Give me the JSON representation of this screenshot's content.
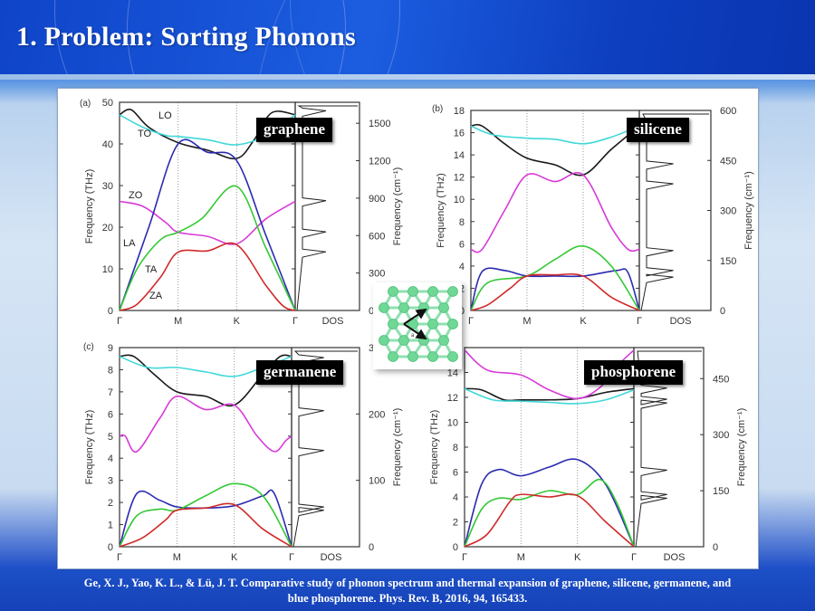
{
  "slide": {
    "title": "1. Problem: Sorting Phonons",
    "citation_line1": "Ge, X. J., Yao, K. L., & Lü, J. T. Comparative  study of phonon  spectrum  and thermal  expansion of graphene, silicene, germanene, and",
    "citation_line2": "blue phosphorene.  Phys. Rev. B, 2016, 94, 165433."
  },
  "colors": {
    "LO": "#1a1a1a",
    "TO": "#40d8d8",
    "ZO": "#d83ad8",
    "LA": "#2b2bb0",
    "TA": "#34c834",
    "ZA": "#d02a2a"
  },
  "inset": {
    "label": "a",
    "description": "honeycomb lattice with lattice vectors"
  },
  "chart_data": [
    {
      "type": "line",
      "panel": "(a)",
      "material": "graphene",
      "x_ticks": [
        "Γ",
        "M",
        "K",
        "Γ"
      ],
      "dos_label": "DOS",
      "ylabel": "Frequency (THz)",
      "ylabel_right": "Frequency (cm⁻¹)",
      "ylim": [
        0,
        50
      ],
      "y_ticks": [
        0,
        10,
        20,
        30,
        40,
        50
      ],
      "ylim_right": [
        0,
        1668
      ],
      "y_ticks_right": [
        0,
        300,
        600,
        900,
        1200,
        1500
      ],
      "branch_labels": [
        "LO",
        "TO",
        "ZO",
        "LA",
        "TA",
        "ZA"
      ],
      "series": [
        {
          "name": "LO",
          "values": [
            [
              0,
              47
            ],
            [
              0.2,
              48.2
            ],
            [
              0.5,
              44
            ],
            [
              1,
              40.3
            ],
            [
              1.5,
              38.5
            ],
            [
              2,
              36.5
            ],
            [
              2.3,
              41
            ],
            [
              2.6,
              47.5
            ],
            [
              3,
              47
            ]
          ]
        },
        {
          "name": "TO",
          "values": [
            [
              0,
              47
            ],
            [
              0.4,
              44
            ],
            [
              0.8,
              42
            ],
            [
              1,
              41.8
            ],
            [
              1.5,
              41
            ],
            [
              2,
              39.8
            ],
            [
              2.5,
              42
            ],
            [
              3,
              47
            ]
          ]
        },
        {
          "name": "ZO",
          "values": [
            [
              0,
              26.2
            ],
            [
              0.4,
              25
            ],
            [
              0.8,
              21
            ],
            [
              1,
              18.8
            ],
            [
              1.5,
              17.8
            ],
            [
              2,
              16
            ],
            [
              2.5,
              22
            ],
            [
              3,
              26.2
            ]
          ]
        },
        {
          "name": "LA",
          "values": [
            [
              0,
              0
            ],
            [
              0.5,
              20
            ],
            [
              1,
              40
            ],
            [
              1.5,
              38
            ],
            [
              2,
              36
            ],
            [
              2.5,
              18
            ],
            [
              3,
              0
            ]
          ]
        },
        {
          "name": "TA",
          "values": [
            [
              0,
              0
            ],
            [
              0.3,
              10
            ],
            [
              0.7,
              17
            ],
            [
              1,
              18.8
            ],
            [
              1.4,
              22
            ],
            [
              2,
              29.8
            ],
            [
              2.5,
              15
            ],
            [
              3,
              0
            ]
          ]
        },
        {
          "name": "ZA",
          "values": [
            [
              0,
              0
            ],
            [
              0.3,
              1.5
            ],
            [
              0.7,
              8
            ],
            [
              1,
              14
            ],
            [
              1.5,
              14.3
            ],
            [
              2,
              15.8
            ],
            [
              2.5,
              6
            ],
            [
              2.8,
              1
            ],
            [
              3,
              0
            ]
          ]
        }
      ],
      "dos_peaks_cm": [
        470,
        630,
        880,
        1600
      ]
    },
    {
      "type": "line",
      "panel": "(b)",
      "material": "silicene",
      "x_ticks": [
        "Γ",
        "M",
        "K",
        "Γ"
      ],
      "dos_label": "DOS",
      "ylabel": "Frequency (THz)",
      "ylabel_right": "Frequency (cm⁻¹)",
      "ylim": [
        0,
        18
      ],
      "y_ticks": [
        0,
        2,
        4,
        6,
        8,
        10,
        12,
        14,
        16,
        18
      ],
      "ylim_right": [
        0,
        600
      ],
      "y_ticks_right": [
        0,
        150,
        300,
        450,
        600
      ],
      "series": [
        {
          "name": "LO",
          "values": [
            [
              0,
              16.6
            ],
            [
              0.2,
              16.6
            ],
            [
              0.6,
              15
            ],
            [
              1,
              13.7
            ],
            [
              1.5,
              13.1
            ],
            [
              2,
              12.2
            ],
            [
              2.5,
              14.5
            ],
            [
              3,
              16.6
            ]
          ]
        },
        {
          "name": "TO",
          "values": [
            [
              0,
              16.6
            ],
            [
              0.4,
              15.8
            ],
            [
              1,
              15.5
            ],
            [
              1.5,
              15.4
            ],
            [
              2,
              15
            ],
            [
              2.5,
              15.6
            ],
            [
              3,
              16.6
            ]
          ]
        },
        {
          "name": "ZO",
          "values": [
            [
              0,
              5.5
            ],
            [
              0.2,
              5.5
            ],
            [
              0.6,
              9
            ],
            [
              1,
              12.2
            ],
            [
              1.5,
              11.6
            ],
            [
              2,
              12.2
            ],
            [
              2.5,
              7.5
            ],
            [
              2.8,
              5.5
            ],
            [
              3,
              5.5
            ]
          ]
        },
        {
          "name": "LA",
          "values": [
            [
              0,
              0
            ],
            [
              0.2,
              3.5
            ],
            [
              0.6,
              3.6
            ],
            [
              1,
              3.1
            ],
            [
              1.5,
              3.1
            ],
            [
              2,
              3.1
            ],
            [
              2.6,
              3.6
            ],
            [
              2.8,
              3.4
            ],
            [
              3,
              0
            ]
          ]
        },
        {
          "name": "TA",
          "values": [
            [
              0,
              0
            ],
            [
              0.3,
              2.5
            ],
            [
              1,
              3.1
            ],
            [
              1.5,
              4.6
            ],
            [
              2,
              5.8
            ],
            [
              2.5,
              4
            ],
            [
              3,
              0
            ]
          ]
        },
        {
          "name": "ZA",
          "values": [
            [
              0,
              0
            ],
            [
              0.3,
              0.5
            ],
            [
              0.7,
              2
            ],
            [
              1,
              3.1
            ],
            [
              1.5,
              3.2
            ],
            [
              2,
              3.1
            ],
            [
              2.5,
              1.2
            ],
            [
              3,
              0
            ]
          ]
        }
      ],
      "dos_peaks_cm": [
        100,
        120,
        180,
        380,
        440,
        560
      ]
    },
    {
      "type": "line",
      "panel": "(c)",
      "material": "germanene",
      "x_ticks": [
        "Γ",
        "M",
        "K",
        "Γ"
      ],
      "dos_label": "DOS",
      "ylabel": "Frequency (THz)",
      "ylabel_right": "Frequency (cm⁻¹)",
      "ylim": [
        0,
        9
      ],
      "y_ticks": [
        0,
        1,
        2,
        3,
        4,
        5,
        6,
        7,
        8,
        9
      ],
      "ylim_right": [
        0,
        300
      ],
      "y_ticks_right": [
        0,
        100,
        200,
        300
      ],
      "series": [
        {
          "name": "LO",
          "values": [
            [
              0,
              8.6
            ],
            [
              0.25,
              8.6
            ],
            [
              0.6,
              7.8
            ],
            [
              1,
              7
            ],
            [
              1.5,
              6.8
            ],
            [
              2,
              6.4
            ],
            [
              2.5,
              7.8
            ],
            [
              2.8,
              8.6
            ],
            [
              3,
              8.6
            ]
          ]
        },
        {
          "name": "TO",
          "values": [
            [
              0,
              8.6
            ],
            [
              0.5,
              8.1
            ],
            [
              1,
              8.1
            ],
            [
              1.5,
              7.9
            ],
            [
              2,
              7.7
            ],
            [
              2.5,
              8.1
            ],
            [
              3,
              8.6
            ]
          ]
        },
        {
          "name": "ZO",
          "values": [
            [
              0,
              5
            ],
            [
              0.1,
              5
            ],
            [
              0.3,
              4.3
            ],
            [
              0.7,
              5.8
            ],
            [
              1,
              6.8
            ],
            [
              1.5,
              6.2
            ],
            [
              2,
              6.4
            ],
            [
              2.4,
              5
            ],
            [
              2.7,
              4.3
            ],
            [
              2.9,
              4.8
            ],
            [
              3,
              5
            ]
          ]
        },
        {
          "name": "LA",
          "values": [
            [
              0,
              0
            ],
            [
              0.3,
              2.4
            ],
            [
              0.7,
              2.1
            ],
            [
              1,
              1.8
            ],
            [
              1.5,
              1.75
            ],
            [
              2,
              1.85
            ],
            [
              2.5,
              2.3
            ],
            [
              2.7,
              2.4
            ],
            [
              3,
              0
            ]
          ]
        },
        {
          "name": "TA",
          "values": [
            [
              0,
              0
            ],
            [
              0.3,
              1.4
            ],
            [
              0.7,
              1.7
            ],
            [
              1,
              1.65
            ],
            [
              1.5,
              2.3
            ],
            [
              2,
              2.85
            ],
            [
              2.5,
              2.3
            ],
            [
              3,
              0
            ]
          ]
        },
        {
          "name": "ZA",
          "values": [
            [
              0,
              0
            ],
            [
              0.4,
              0.4
            ],
            [
              0.8,
              1.2
            ],
            [
              1,
              1.65
            ],
            [
              1.5,
              1.75
            ],
            [
              2,
              1.9
            ],
            [
              2.5,
              0.8
            ],
            [
              3,
              0
            ]
          ]
        }
      ],
      "dos_peaks_cm": [
        55,
        60,
        145,
        205,
        285
      ]
    },
    {
      "type": "line",
      "panel": "(d)",
      "material": "phosphorene",
      "x_ticks": [
        "Γ",
        "M",
        "K",
        "Γ"
      ],
      "dos_label": "DOS",
      "ylabel": "Frequency (THz)",
      "ylabel_right": "Frequency (cm⁻¹)",
      "ylim": [
        0,
        16
      ],
      "y_ticks": [
        0,
        2,
        4,
        6,
        8,
        10,
        12,
        14
      ],
      "ylim_right": [
        0,
        533
      ],
      "y_ticks_right": [
        0,
        150,
        300,
        450
      ],
      "series": [
        {
          "name": "LO",
          "values": [
            [
              0,
              12.7
            ],
            [
              0.3,
              12.6
            ],
            [
              0.7,
              11.8
            ],
            [
              1,
              11.8
            ],
            [
              1.5,
              11.8
            ],
            [
              2,
              11.9
            ],
            [
              2.5,
              12.4
            ],
            [
              3,
              12.7
            ]
          ]
        },
        {
          "name": "TO",
          "values": [
            [
              0,
              12.7
            ],
            [
              0.5,
              11.8
            ],
            [
              1,
              11.7
            ],
            [
              1.5,
              11.6
            ],
            [
              2,
              11.5
            ],
            [
              2.5,
              11.8
            ],
            [
              3,
              12.6
            ]
          ]
        },
        {
          "name": "ZO",
          "values": [
            [
              0,
              15.8
            ],
            [
              0.4,
              14.2
            ],
            [
              1,
              13.8
            ],
            [
              1.5,
              12.6
            ],
            [
              2,
              11.9
            ],
            [
              2.4,
              12.8
            ],
            [
              2.7,
              14.5
            ],
            [
              3,
              15.8
            ]
          ]
        },
        {
          "name": "LA",
          "values": [
            [
              0,
              0
            ],
            [
              0.3,
              5
            ],
            [
              0.6,
              6.2
            ],
            [
              1,
              5.7
            ],
            [
              1.5,
              6.4
            ],
            [
              2,
              7
            ],
            [
              2.5,
              5
            ],
            [
              3,
              0
            ]
          ]
        },
        {
          "name": "TA",
          "values": [
            [
              0,
              0
            ],
            [
              0.3,
              3
            ],
            [
              0.6,
              3.9
            ],
            [
              1,
              3.8
            ],
            [
              1.5,
              4.5
            ],
            [
              2,
              4.2
            ],
            [
              2.4,
              5.4
            ],
            [
              2.7,
              3.5
            ],
            [
              3,
              0
            ]
          ]
        },
        {
          "name": "ZA",
          "values": [
            [
              0,
              0
            ],
            [
              0.4,
              1
            ],
            [
              0.8,
              3.6
            ],
            [
              1,
              4.2
            ],
            [
              1.5,
              4
            ],
            [
              2,
              4.1
            ],
            [
              2.5,
              2
            ],
            [
              3,
              0
            ]
          ]
        }
      ],
      "dos_peaks_cm": [
        130,
        140,
        205,
        385,
        395,
        425
      ]
    }
  ]
}
